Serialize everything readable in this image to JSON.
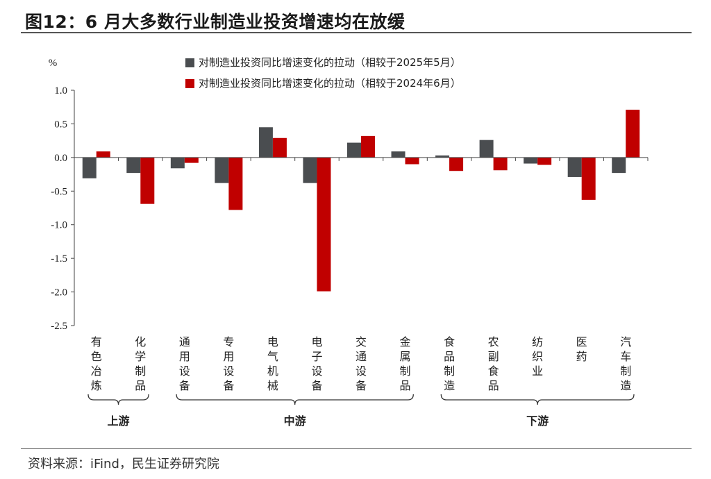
{
  "header": {
    "title": "图12：6 月大多数行业制造业投资增速均在放缓"
  },
  "footer": {
    "source": "资料来源：iFind，民生证券研究院"
  },
  "chart_data": {
    "type": "bar",
    "ylabel": "%",
    "ylim": [
      -2.5,
      1.0
    ],
    "yticks": [
      "1.0",
      "0.5",
      "0.0",
      "-0.5",
      "-1.0",
      "-1.5",
      "-2.0",
      "-2.5"
    ],
    "categories": [
      "有色冶炼",
      "化学制品",
      "通用设备",
      "专用设备",
      "电气机械",
      "电子设备",
      "交通设备",
      "金属制品",
      "食品制造",
      "农副食品",
      "纺织业",
      "医药",
      "汽车制造"
    ],
    "series": [
      {
        "name": "对制造业投资同比增速变化的拉动（相较于2025年5月）",
        "color": "#4a4d50",
        "values": [
          -0.31,
          -0.23,
          -0.16,
          -0.38,
          0.45,
          -0.38,
          0.22,
          0.09,
          0.03,
          0.26,
          -0.09,
          -0.29,
          -0.23
        ]
      },
      {
        "name": "对制造业投资同比增速变化的拉动（相较于2024年6月）",
        "color": "#c00000",
        "values": [
          0.09,
          -0.69,
          -0.08,
          -0.78,
          0.29,
          -1.99,
          0.32,
          -0.1,
          -0.2,
          -0.19,
          -0.11,
          -0.63,
          0.71
        ]
      }
    ],
    "groups": [
      {
        "label": "上游",
        "from": 0,
        "to": 1
      },
      {
        "label": "中游",
        "from": 2,
        "to": 7
      },
      {
        "label": "下游",
        "from": 8,
        "to": 12
      }
    ],
    "legend": "top-center",
    "grid": false
  }
}
